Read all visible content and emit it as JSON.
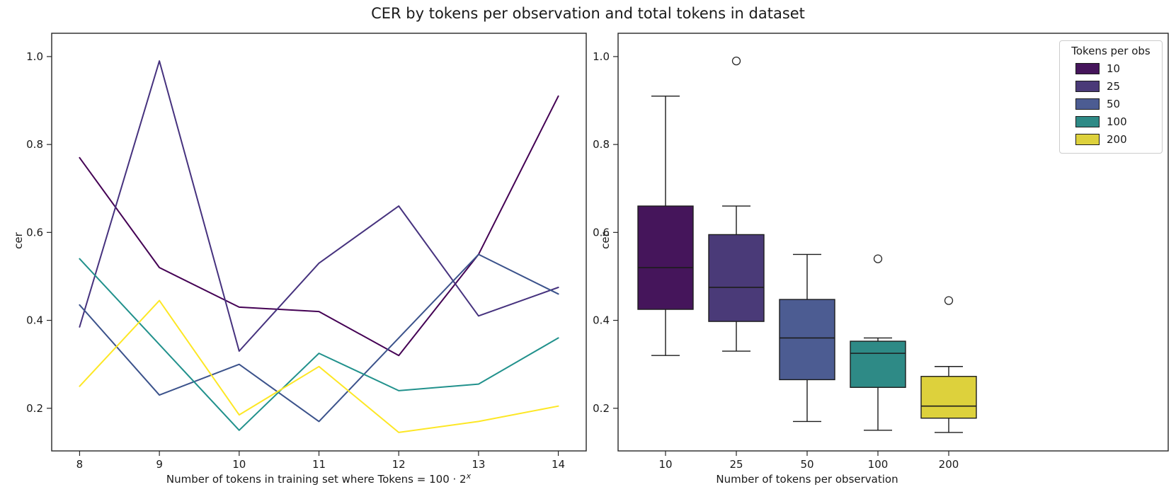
{
  "figure": {
    "title": "CER by tokens per observation and total tokens in dataset",
    "background_color": "#ffffff",
    "text_color": "#1a1a1a",
    "spine_color": "#262626"
  },
  "chart_data": [
    {
      "type": "line",
      "panel": "left",
      "xlabel_main": "Number of tokens in training set where Tokens = 100 · 2",
      "xlabel_sup": "x",
      "ylabel": "cer",
      "x": [
        8,
        9,
        10,
        11,
        12,
        13,
        14
      ],
      "xtick_labels": [
        "8",
        "9",
        "10",
        "11",
        "12",
        "13",
        "14"
      ],
      "ytick_values": [
        0.2,
        0.4,
        0.6,
        0.8,
        1.0
      ],
      "ytick_labels": [
        "0.2",
        "0.4",
        "0.6",
        "0.8",
        "1.0"
      ],
      "xlim": [
        7.65,
        14.35
      ],
      "ylim": [
        0.103,
        1.053
      ],
      "grid": false,
      "legend_position": "none",
      "series": [
        {
          "name": "10",
          "color": "#440154",
          "values": [
            0.77,
            0.52,
            0.43,
            0.42,
            0.32,
            0.55,
            0.91
          ]
        },
        {
          "name": "25",
          "color": "#46327e",
          "values": [
            0.385,
            0.99,
            0.33,
            0.53,
            0.66,
            0.41,
            0.475
          ]
        },
        {
          "name": "50",
          "color": "#3b528b",
          "values": [
            0.435,
            0.23,
            0.3,
            0.17,
            0.36,
            0.55,
            0.46
          ]
        },
        {
          "name": "100",
          "color": "#21918c",
          "values": [
            0.54,
            0.345,
            0.15,
            0.325,
            0.24,
            0.255,
            0.36
          ]
        },
        {
          "name": "200",
          "color": "#fde725",
          "values": [
            0.25,
            0.445,
            0.185,
            0.295,
            0.145,
            0.17,
            0.205
          ]
        }
      ]
    },
    {
      "type": "boxplot",
      "panel": "right",
      "xlabel": "Number of tokens per observation",
      "ylabel": "cer",
      "categories": [
        "10",
        "25",
        "50",
        "100",
        "200"
      ],
      "ytick_values": [
        0.2,
        0.4,
        0.6,
        0.8,
        1.0
      ],
      "ytick_labels": [
        "0.2",
        "0.4",
        "0.6",
        "0.8",
        "1.0"
      ],
      "ylim": [
        0.103,
        1.053
      ],
      "grid": false,
      "legend": {
        "title": "Tokens per obs",
        "entries": [
          "10",
          "25",
          "50",
          "100",
          "200"
        ],
        "position": "upper right"
      },
      "boxes": [
        {
          "category": "10",
          "fill": "#45155b",
          "whisker_low": 0.32,
          "q1": 0.425,
          "median": 0.52,
          "q3": 0.66,
          "whisker_high": 0.91,
          "outliers": []
        },
        {
          "category": "25",
          "fill": "#4a3a78",
          "whisker_low": 0.33,
          "q1": 0.3975,
          "median": 0.475,
          "q3": 0.595,
          "whisker_high": 0.66,
          "outliers": [
            0.99
          ]
        },
        {
          "category": "50",
          "fill": "#4c5c92",
          "whisker_low": 0.17,
          "q1": 0.265,
          "median": 0.36,
          "q3": 0.4475,
          "whisker_high": 0.55,
          "outliers": []
        },
        {
          "category": "100",
          "fill": "#2e8a86",
          "whisker_low": 0.15,
          "q1": 0.2475,
          "median": 0.325,
          "q3": 0.3525,
          "whisker_high": 0.36,
          "outliers": [
            0.54
          ]
        },
        {
          "category": "200",
          "fill": "#ddd13c",
          "whisker_low": 0.145,
          "q1": 0.1775,
          "median": 0.205,
          "q3": 0.2725,
          "whisker_high": 0.295,
          "outliers": [
            0.445
          ]
        }
      ]
    }
  ]
}
